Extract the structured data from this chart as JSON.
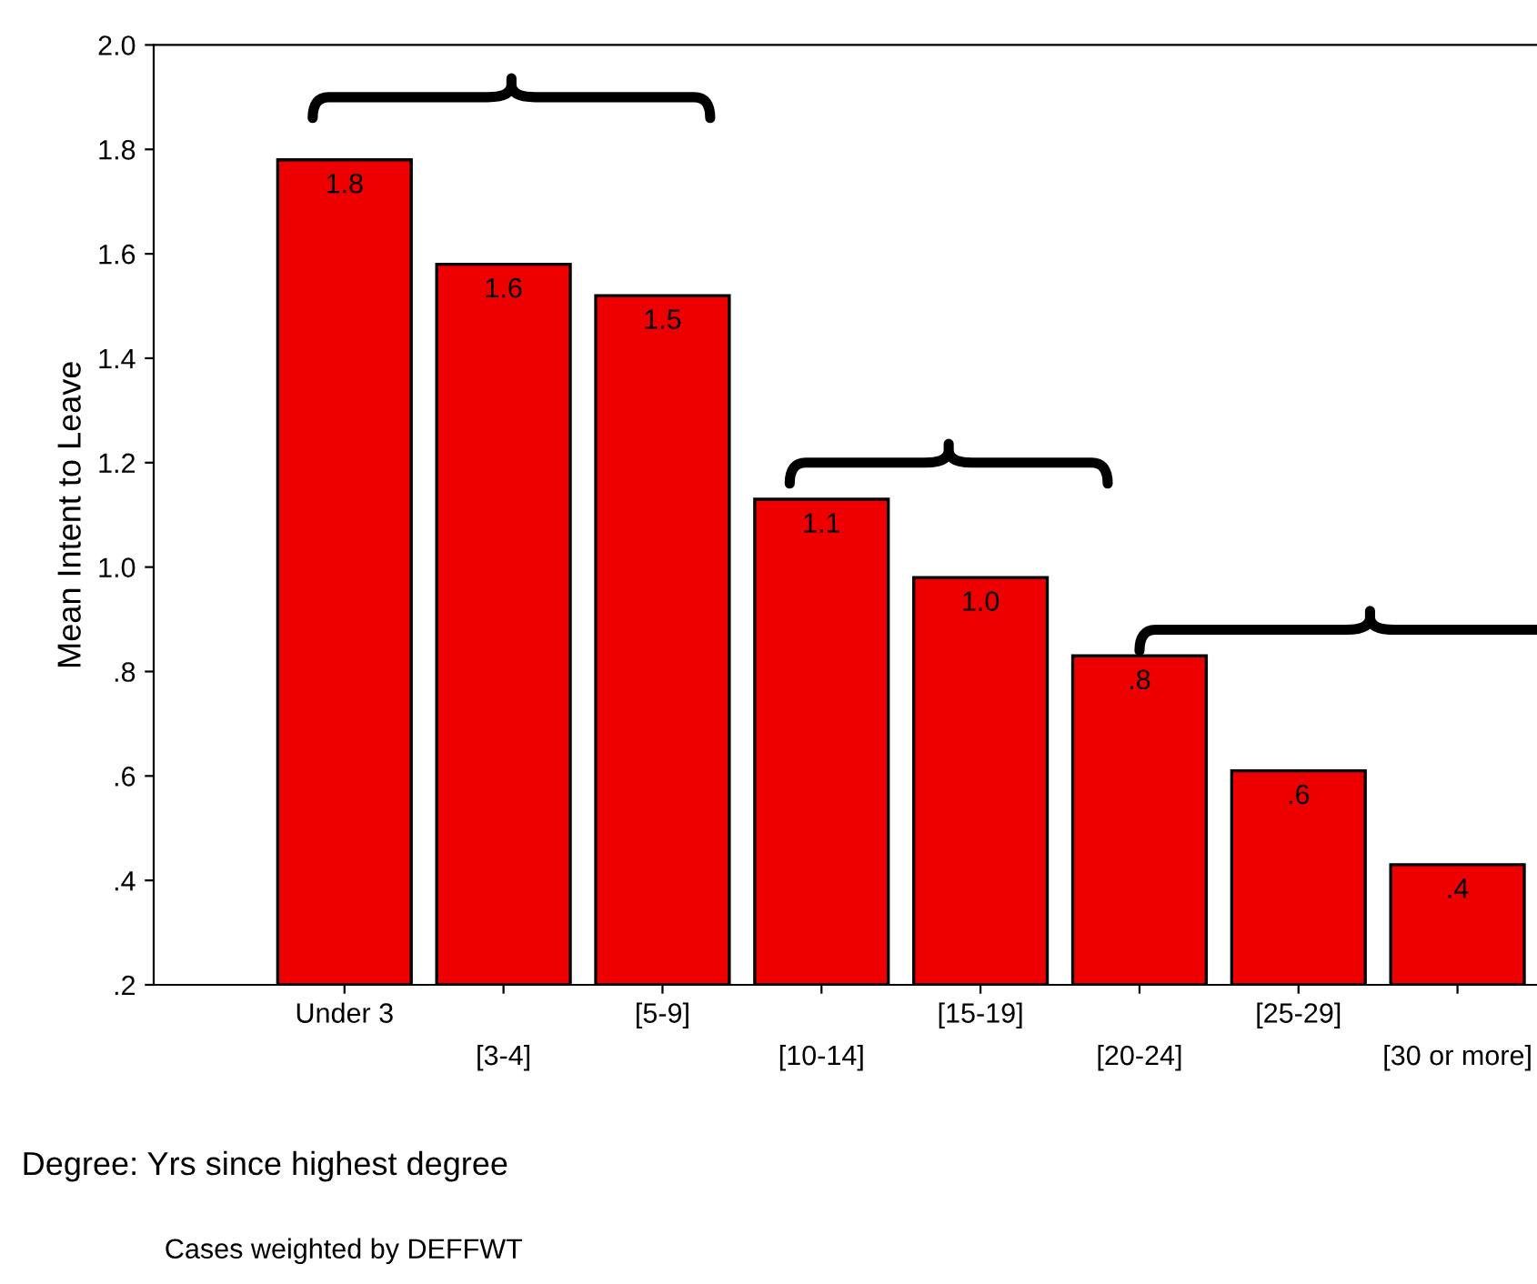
{
  "chart_data": {
    "type": "bar",
    "xlabel": "Degree: Yrs since highest degree",
    "ylabel": "Mean Intent to Leave",
    "categories": [
      "Under 3",
      "[3-4]",
      "[5-9]",
      "[10-14]",
      "[15-19]",
      "[20-24]",
      "[25-29]",
      "[30 or more]"
    ],
    "values": [
      1.78,
      1.58,
      1.52,
      1.13,
      0.98,
      0.83,
      0.61,
      0.43
    ],
    "value_labels": [
      "1.8",
      "1.6",
      "1.5",
      "1.1",
      "1.0",
      ".8",
      ".6",
      ".4"
    ],
    "color": "#ee0000",
    "ylim": [
      0.2,
      2.0
    ],
    "yticks": [
      {
        "value": 0.2,
        "label": ".2"
      },
      {
        "value": 0.4,
        "label": ".4"
      },
      {
        "value": 0.6,
        "label": ".6"
      },
      {
        "value": 0.8,
        "label": ".8"
      },
      {
        "value": 1.0,
        "label": "1.0"
      },
      {
        "value": 1.2,
        "label": "1.2"
      },
      {
        "value": 1.4,
        "label": "1.4"
      },
      {
        "value": 1.6,
        "label": "1.6"
      },
      {
        "value": 1.8,
        "label": "1.8"
      },
      {
        "value": 2.0,
        "label": "2.0"
      }
    ],
    "grid": false,
    "annotations": [
      "Cases weighted by DEFFWT"
    ]
  }
}
